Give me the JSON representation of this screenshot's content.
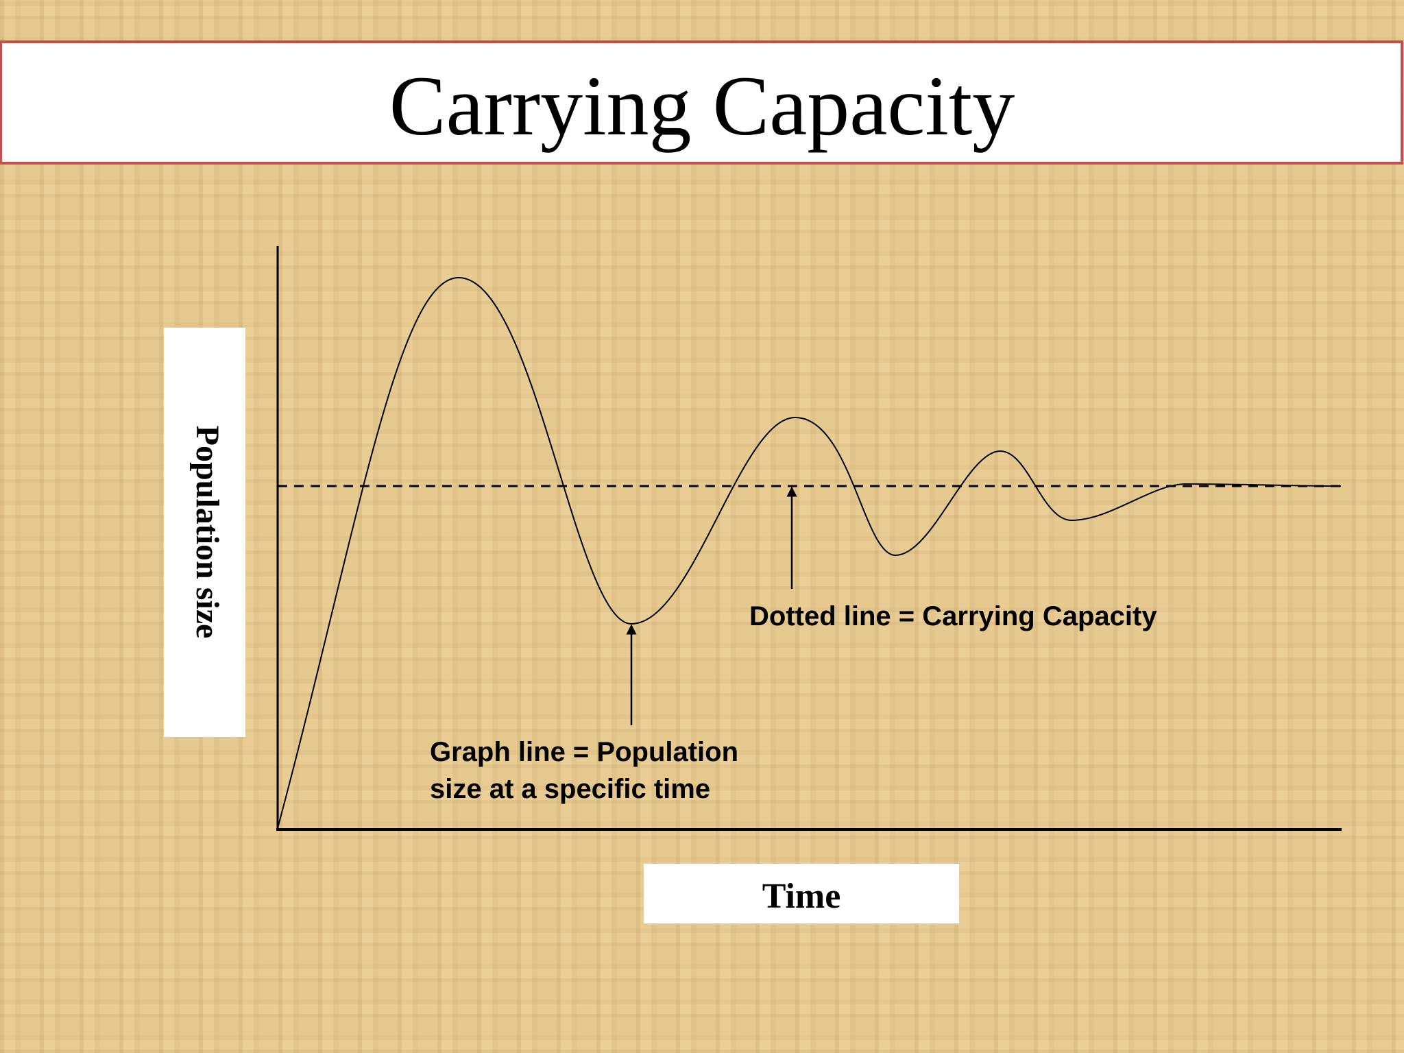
{
  "title": "Carrying Capacity",
  "axes": {
    "y_label": "Population size",
    "x_label": "Time"
  },
  "annotations": {
    "carrying_capacity": "Dotted line = Carrying Capacity",
    "population": [
      "Graph line = Population",
      "size at a specific time"
    ]
  }
}
